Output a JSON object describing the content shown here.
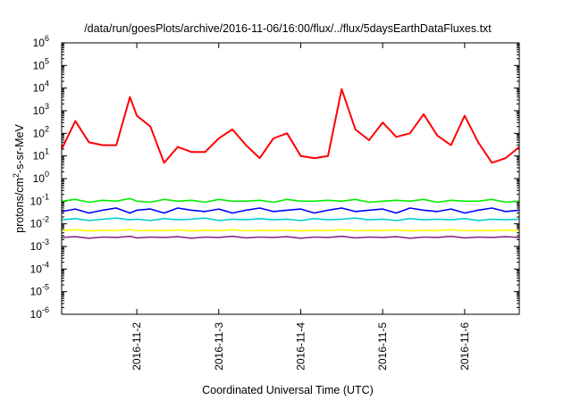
{
  "chart_data": {
    "type": "line",
    "title": "/data/run/goesPlots/archive/2016-11-06/16:00/flux/../flux/5daysEarthDataFluxes.txt",
    "xlabel": "Coordinated Universal Time (UTC)",
    "ylabel": "protons/cm2-s-sr-MeV",
    "ylabel_parts": {
      "pre": "protons/cm",
      "sup": "2",
      "post": "-s-sr-MeV"
    },
    "y_scale": "log",
    "ylim": [
      1e-06,
      1000000.0
    ],
    "y_ticks": [
      {
        "base": "10",
        "exp": "-6"
      },
      {
        "base": "10",
        "exp": "-5"
      },
      {
        "base": "10",
        "exp": "-4"
      },
      {
        "base": "10",
        "exp": "-3"
      },
      {
        "base": "10",
        "exp": "-2"
      },
      {
        "base": "10",
        "exp": "-1"
      },
      {
        "base": "10",
        "exp": "0"
      },
      {
        "base": "10",
        "exp": "1"
      },
      {
        "base": "10",
        "exp": "2"
      },
      {
        "base": "10",
        "exp": "3"
      },
      {
        "base": "10",
        "exp": "4"
      },
      {
        "base": "10",
        "exp": "5"
      },
      {
        "base": "10",
        "exp": "6"
      }
    ],
    "xlim": [
      "2016-11-01 02:00",
      "2016-11-06 16:00"
    ],
    "x_ticks": [
      "2016-11-2",
      "2016-11-3",
      "2016-11-4",
      "2016-11-5",
      "2016-11-6"
    ],
    "x_tick_positions": [
      "2016-11-02 00:00",
      "2016-11-03 00:00",
      "2016-11-04 00:00",
      "2016-11-05 00:00",
      "2016-11-06 00:00"
    ],
    "grid": false,
    "legend": "none",
    "x": [
      "2016-11-01 02:00",
      "2016-11-01 06:00",
      "2016-11-01 10:00",
      "2016-11-01 14:00",
      "2016-11-01 18:00",
      "2016-11-01 22:00",
      "2016-11-02 00:00",
      "2016-11-02 04:00",
      "2016-11-02 08:00",
      "2016-11-02 12:00",
      "2016-11-02 16:00",
      "2016-11-02 20:00",
      "2016-11-03 00:00",
      "2016-11-03 04:00",
      "2016-11-03 08:00",
      "2016-11-03 12:00",
      "2016-11-03 16:00",
      "2016-11-03 20:00",
      "2016-11-04 00:00",
      "2016-11-04 04:00",
      "2016-11-04 08:00",
      "2016-11-04 12:00",
      "2016-11-04 16:00",
      "2016-11-04 20:00",
      "2016-11-05 00:00",
      "2016-11-05 04:00",
      "2016-11-05 08:00",
      "2016-11-05 12:00",
      "2016-11-05 16:00",
      "2016-11-05 20:00",
      "2016-11-06 00:00",
      "2016-11-06 04:00",
      "2016-11-06 08:00",
      "2016-11-06 12:00",
      "2016-11-06 16:00"
    ],
    "series": [
      {
        "color": "#ff0000",
        "values": [
          20,
          350,
          40,
          30,
          30,
          4000,
          600,
          200,
          5,
          25,
          15,
          15,
          60,
          150,
          30,
          8,
          60,
          100,
          10,
          8,
          10,
          9000,
          150,
          50,
          300,
          70,
          100,
          700,
          80,
          30,
          600,
          40,
          5,
          8,
          25
        ]
      },
      {
        "color": "#00ee00",
        "values": [
          0.1,
          0.12,
          0.09,
          0.11,
          0.1,
          0.13,
          0.1,
          0.09,
          0.12,
          0.1,
          0.11,
          0.09,
          0.12,
          0.1,
          0.1,
          0.11,
          0.09,
          0.12,
          0.1,
          0.1,
          0.11,
          0.1,
          0.12,
          0.09,
          0.1,
          0.11,
          0.1,
          0.12,
          0.09,
          0.11,
          0.1,
          0.1,
          0.12,
          0.09,
          0.1
        ]
      },
      {
        "color": "#0000ff",
        "values": [
          0.035,
          0.045,
          0.03,
          0.04,
          0.05,
          0.03,
          0.04,
          0.045,
          0.03,
          0.05,
          0.04,
          0.035,
          0.045,
          0.03,
          0.04,
          0.05,
          0.035,
          0.04,
          0.045,
          0.03,
          0.04,
          0.05,
          0.035,
          0.04,
          0.045,
          0.03,
          0.05,
          0.04,
          0.035,
          0.045,
          0.03,
          0.04,
          0.05,
          0.035,
          0.04
        ]
      },
      {
        "color": "#00cccc",
        "values": [
          0.015,
          0.017,
          0.014,
          0.016,
          0.018,
          0.015,
          0.016,
          0.014,
          0.017,
          0.015,
          0.016,
          0.018,
          0.014,
          0.016,
          0.015,
          0.017,
          0.015,
          0.016,
          0.014,
          0.017,
          0.015,
          0.016,
          0.018,
          0.015,
          0.016,
          0.014,
          0.017,
          0.015,
          0.016,
          0.015,
          0.017,
          0.014,
          0.016,
          0.015,
          0.016
        ]
      },
      {
        "color": "#ffff00",
        "values": [
          0.005,
          0.0055,
          0.0048,
          0.0052,
          0.005,
          0.0056,
          0.0049,
          0.0051,
          0.005,
          0.0054,
          0.0048,
          0.0052,
          0.005,
          0.0055,
          0.0049,
          0.0051,
          0.005,
          0.0053,
          0.0048,
          0.0052,
          0.005,
          0.0055,
          0.0049,
          0.0051,
          0.005,
          0.0054,
          0.0048,
          0.0052,
          0.005,
          0.0055,
          0.0049,
          0.0051,
          0.005,
          0.0053,
          0.005
        ]
      },
      {
        "color": "#8b2a8b",
        "values": [
          0.0025,
          0.0027,
          0.0023,
          0.0026,
          0.0025,
          0.0028,
          0.0024,
          0.0026,
          0.0025,
          0.0027,
          0.0023,
          0.0026,
          0.0025,
          0.0028,
          0.0024,
          0.0026,
          0.0025,
          0.0027,
          0.0023,
          0.0026,
          0.0025,
          0.0028,
          0.0024,
          0.0026,
          0.0025,
          0.0027,
          0.0023,
          0.0026,
          0.0025,
          0.0028,
          0.0024,
          0.0026,
          0.0025,
          0.0027,
          0.0025
        ]
      }
    ]
  }
}
